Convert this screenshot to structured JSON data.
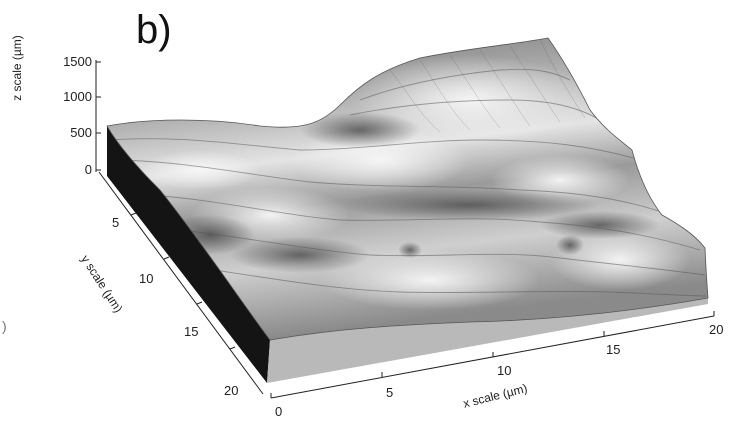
{
  "figure": {
    "panel_label": "b)",
    "edge_mark": ")"
  },
  "axes": {
    "z": {
      "title": "z scale (µm)",
      "ticks": [
        "1500",
        "1000",
        "500",
        "0"
      ]
    },
    "y": {
      "title": "y scale (µm)",
      "ticks": [
        "5",
        "10",
        "15",
        "20"
      ]
    },
    "x": {
      "title": "x scale (µm)",
      "ticks": [
        "0",
        "5",
        "10",
        "15",
        "20"
      ]
    }
  },
  "colors": {
    "surface_light": "#f2f2f2",
    "surface_mid": "#b4b4b4",
    "surface_dark": "#6a6a6a",
    "front_face": "#b9b9b9",
    "left_face": "#141414"
  }
}
